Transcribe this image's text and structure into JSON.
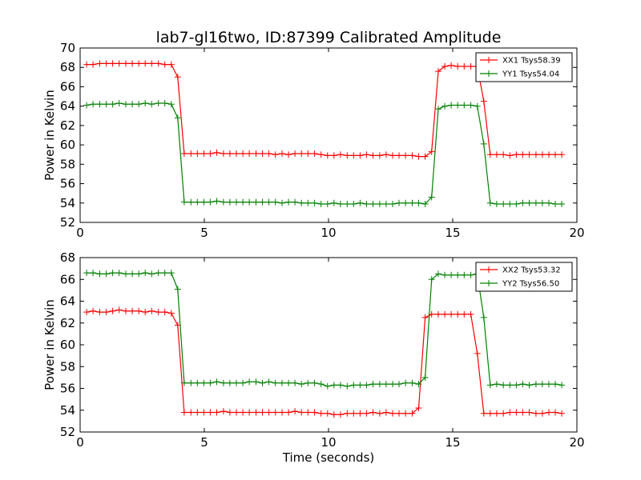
{
  "title": "lab7-gl16two, ID:87399 Calibrated Amplitude",
  "chart_data": [
    {
      "type": "line",
      "title": "lab7-gl16two, ID:87399 Calibrated Amplitude",
      "xlabel": "",
      "ylabel": "Power in Kelvin",
      "xlim": [
        0,
        20
      ],
      "ylim": [
        52,
        70
      ],
      "xticks": [
        0,
        5,
        10,
        15,
        20
      ],
      "yticks": [
        52,
        54,
        56,
        58,
        60,
        62,
        64,
        66,
        68,
        70
      ],
      "grid": false,
      "legend_position": "upper-right",
      "x": [
        0.26,
        0.52,
        0.79,
        1.05,
        1.31,
        1.57,
        1.84,
        2.1,
        2.36,
        2.62,
        2.88,
        3.15,
        3.41,
        3.67,
        3.93,
        4.19,
        4.46,
        4.72,
        4.98,
        5.24,
        5.5,
        5.77,
        6.03,
        6.29,
        6.55,
        6.81,
        7.08,
        7.34,
        7.6,
        7.86,
        8.13,
        8.39,
        8.65,
        8.91,
        9.17,
        9.44,
        9.7,
        9.96,
        10.22,
        10.48,
        10.75,
        11.01,
        11.27,
        11.53,
        11.79,
        12.06,
        12.32,
        12.58,
        12.84,
        13.1,
        13.37,
        13.63,
        13.89,
        14.15,
        14.42,
        14.68,
        14.94,
        15.2,
        15.46,
        15.73,
        15.99,
        16.25,
        16.51,
        16.77,
        17.04,
        17.3,
        17.56,
        17.82,
        18.08,
        18.35,
        18.61,
        18.87,
        19.13,
        19.39
      ],
      "series": [
        {
          "name": "XX1 Tsys58.39",
          "color": "#ff0000",
          "values": [
            68.3,
            68.3,
            68.4,
            68.4,
            68.4,
            68.4,
            68.4,
            68.4,
            68.4,
            68.4,
            68.4,
            68.4,
            68.3,
            68.3,
            67.0,
            59.1,
            59.1,
            59.1,
            59.1,
            59.1,
            59.2,
            59.1,
            59.1,
            59.1,
            59.1,
            59.1,
            59.1,
            59.1,
            59.1,
            59.0,
            59.1,
            59.0,
            59.1,
            59.1,
            59.1,
            59.1,
            59.0,
            58.9,
            58.9,
            59.0,
            58.9,
            58.9,
            58.9,
            59.0,
            58.9,
            58.9,
            59.0,
            58.9,
            58.9,
            58.9,
            58.9,
            58.8,
            58.8,
            59.3,
            67.6,
            68.1,
            68.2,
            68.1,
            68.1,
            68.1,
            68.1,
            64.5,
            59.0,
            59.0,
            59.0,
            58.9,
            59.0,
            59.0,
            59.0,
            59.0,
            59.0,
            59.0,
            59.0,
            59.0
          ]
        },
        {
          "name": "YY1 Tsys54.04",
          "color": "#008000",
          "values": [
            64.1,
            64.2,
            64.2,
            64.2,
            64.2,
            64.3,
            64.2,
            64.2,
            64.2,
            64.3,
            64.2,
            64.3,
            64.3,
            64.2,
            62.8,
            54.1,
            54.1,
            54.1,
            54.1,
            54.1,
            54.2,
            54.1,
            54.1,
            54.1,
            54.1,
            54.1,
            54.1,
            54.1,
            54.1,
            54.1,
            54.0,
            54.1,
            54.1,
            54.0,
            54.0,
            54.0,
            53.9,
            53.9,
            54.0,
            53.9,
            53.9,
            53.9,
            54.0,
            53.9,
            53.9,
            53.9,
            53.9,
            53.9,
            54.0,
            54.0,
            54.0,
            54.0,
            53.9,
            54.6,
            63.7,
            64.0,
            64.1,
            64.1,
            64.1,
            64.1,
            64.0,
            60.1,
            54.0,
            53.9,
            53.9,
            53.9,
            53.9,
            54.0,
            54.0,
            54.0,
            54.0,
            54.0,
            53.9,
            53.9
          ]
        }
      ]
    },
    {
      "type": "line",
      "title": "",
      "xlabel": "Time (seconds)",
      "ylabel": "Power in Kelvin",
      "xlim": [
        0,
        20
      ],
      "ylim": [
        52,
        68
      ],
      "xticks": [
        0,
        5,
        10,
        15,
        20
      ],
      "yticks": [
        52,
        54,
        56,
        58,
        60,
        62,
        64,
        66,
        68
      ],
      "grid": false,
      "legend_position": "upper-right",
      "x": [
        0.26,
        0.52,
        0.79,
        1.05,
        1.31,
        1.57,
        1.84,
        2.1,
        2.36,
        2.62,
        2.88,
        3.15,
        3.41,
        3.67,
        3.93,
        4.19,
        4.46,
        4.72,
        4.98,
        5.24,
        5.5,
        5.77,
        6.03,
        6.29,
        6.55,
        6.81,
        7.08,
        7.34,
        7.6,
        7.86,
        8.13,
        8.39,
        8.65,
        8.91,
        9.17,
        9.44,
        9.7,
        9.96,
        10.22,
        10.48,
        10.75,
        11.01,
        11.27,
        11.53,
        11.79,
        12.06,
        12.32,
        12.58,
        12.84,
        13.1,
        13.37,
        13.63,
        13.89,
        14.15,
        14.42,
        14.68,
        14.94,
        15.2,
        15.46,
        15.73,
        15.99,
        16.25,
        16.51,
        16.77,
        17.04,
        17.3,
        17.56,
        17.82,
        18.08,
        18.35,
        18.61,
        18.87,
        19.13,
        19.39
      ],
      "series": [
        {
          "name": "XX2 Tsys53.32",
          "color": "#ff0000",
          "values": [
            63.0,
            63.1,
            63.0,
            63.0,
            63.1,
            63.2,
            63.1,
            63.1,
            63.1,
            63.0,
            63.1,
            63.0,
            63.0,
            62.9,
            61.8,
            53.8,
            53.8,
            53.8,
            53.8,
            53.8,
            53.8,
            53.9,
            53.8,
            53.8,
            53.8,
            53.8,
            53.8,
            53.8,
            53.8,
            53.8,
            53.8,
            53.8,
            53.9,
            53.8,
            53.8,
            53.8,
            53.7,
            53.7,
            53.6,
            53.6,
            53.7,
            53.7,
            53.7,
            53.7,
            53.8,
            53.7,
            53.8,
            53.7,
            53.7,
            53.7,
            53.7,
            54.2,
            62.5,
            62.8,
            62.8,
            62.8,
            62.8,
            62.8,
            62.8,
            62.8,
            59.2,
            53.7,
            53.7,
            53.7,
            53.7,
            53.8,
            53.8,
            53.8,
            53.8,
            53.7,
            53.7,
            53.8,
            53.8,
            53.7
          ]
        },
        {
          "name": "YY2 Tsys56.50",
          "color": "#008000",
          "values": [
            66.6,
            66.6,
            66.5,
            66.5,
            66.6,
            66.6,
            66.5,
            66.5,
            66.5,
            66.6,
            66.5,
            66.6,
            66.6,
            66.6,
            65.1,
            56.5,
            56.5,
            56.5,
            56.5,
            56.5,
            56.6,
            56.5,
            56.5,
            56.5,
            56.5,
            56.6,
            56.6,
            56.5,
            56.6,
            56.5,
            56.5,
            56.5,
            56.5,
            56.4,
            56.5,
            56.5,
            56.4,
            56.2,
            56.3,
            56.3,
            56.2,
            56.3,
            56.3,
            56.3,
            56.4,
            56.4,
            56.4,
            56.4,
            56.4,
            56.5,
            56.5,
            56.4,
            57.0,
            66.0,
            66.5,
            66.4,
            66.4,
            66.4,
            66.4,
            66.4,
            66.5,
            62.5,
            56.3,
            56.4,
            56.3,
            56.3,
            56.3,
            56.4,
            56.3,
            56.4,
            56.4,
            56.4,
            56.4,
            56.3
          ]
        }
      ]
    }
  ]
}
